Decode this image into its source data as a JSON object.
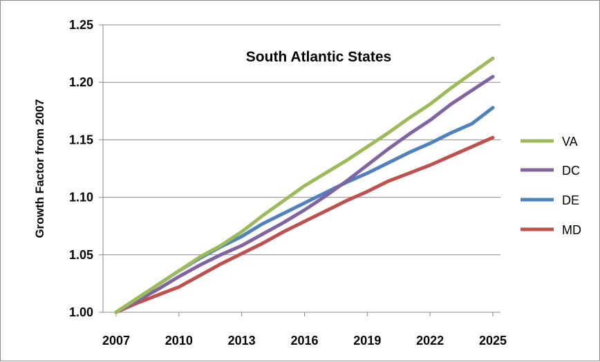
{
  "chart_data": {
    "type": "line",
    "title": "South Atlantic States",
    "xlabel": "",
    "ylabel": "Growth Factor from 2007",
    "x": [
      2007,
      2008,
      2009,
      2010,
      2011,
      2012,
      2013,
      2014,
      2015,
      2016,
      2017,
      2018,
      2019,
      2020,
      2021,
      2022,
      2023,
      2024,
      2025
    ],
    "xticks": [
      "2007",
      "2010",
      "2013",
      "2016",
      "2019",
      "2022",
      "2025"
    ],
    "yticks": [
      "1.00",
      "1.05",
      "1.10",
      "1.15",
      "1.20",
      "1.25"
    ],
    "xlim": [
      2007,
      2025
    ],
    "ylim": [
      1.0,
      1.25
    ],
    "grid": "horizontal",
    "legend": "right",
    "series": [
      {
        "name": "VA",
        "color": "#9bbb59",
        "values": [
          1.0,
          1.012,
          1.024,
          1.036,
          1.048,
          1.058,
          1.07,
          1.084,
          1.097,
          1.11,
          1.121,
          1.132,
          1.144,
          1.156,
          1.169,
          1.181,
          1.195,
          1.208,
          1.221
        ]
      },
      {
        "name": "DC",
        "color": "#8064a2",
        "values": [
          1.0,
          1.01,
          1.02,
          1.031,
          1.041,
          1.05,
          1.058,
          1.068,
          1.078,
          1.089,
          1.101,
          1.114,
          1.128,
          1.142,
          1.155,
          1.167,
          1.181,
          1.193,
          1.205
        ]
      },
      {
        "name": "DE",
        "color": "#4f81bd",
        "values": [
          1.0,
          1.012,
          1.024,
          1.036,
          1.047,
          1.057,
          1.066,
          1.077,
          1.086,
          1.095,
          1.104,
          1.113,
          1.121,
          1.13,
          1.139,
          1.147,
          1.156,
          1.164,
          1.178
        ]
      },
      {
        "name": "MD",
        "color": "#c0504d",
        "values": [
          1.0,
          1.008,
          1.015,
          1.022,
          1.032,
          1.042,
          1.051,
          1.06,
          1.07,
          1.079,
          1.088,
          1.097,
          1.105,
          1.114,
          1.121,
          1.128,
          1.136,
          1.144,
          1.152
        ]
      }
    ]
  }
}
